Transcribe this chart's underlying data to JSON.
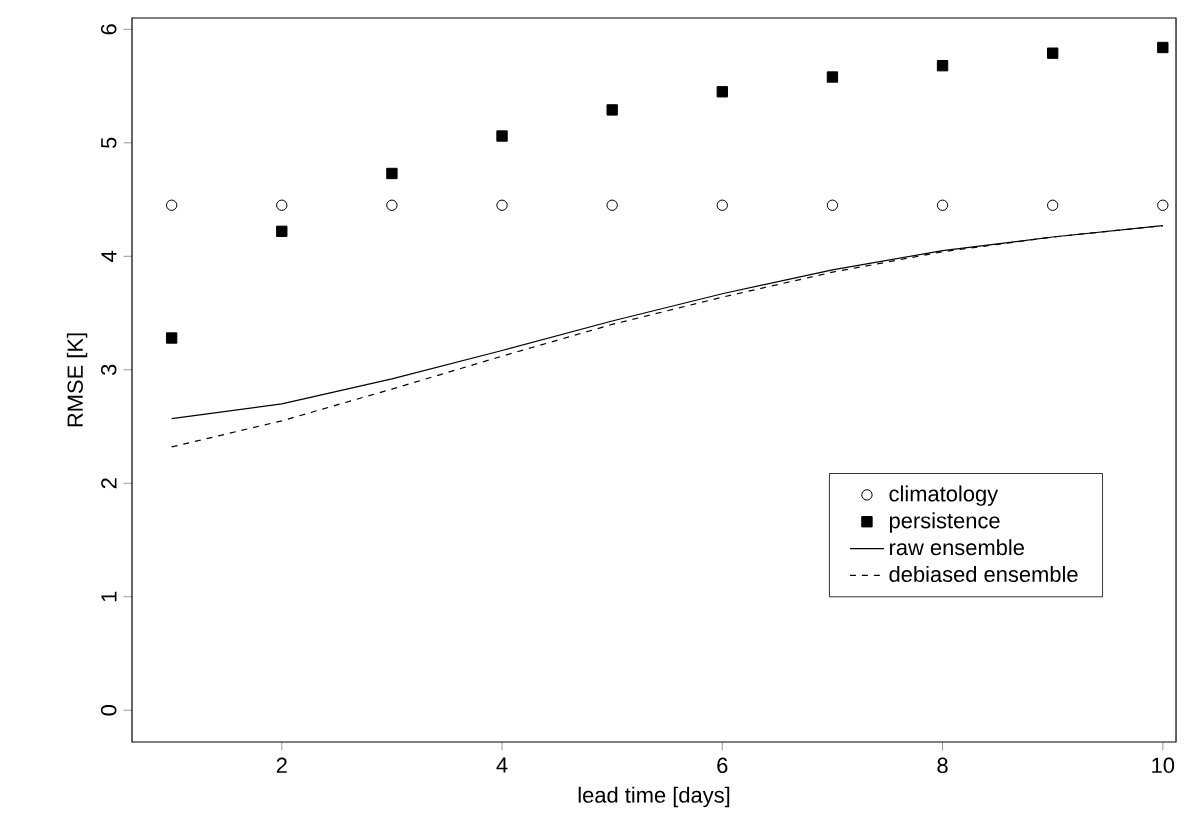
{
  "chart_data": {
    "type": "line",
    "xlabel": "lead time [days]",
    "ylabel": "RMSE [K]",
    "x": [
      1,
      2,
      3,
      4,
      5,
      6,
      7,
      8,
      9,
      10
    ],
    "xlim": [
      0.64,
      10.12
    ],
    "ylim": [
      -0.28,
      6.1
    ],
    "xticks": [
      2,
      4,
      6,
      8,
      10
    ],
    "yticks": [
      0,
      1,
      2,
      3,
      4,
      5,
      6
    ],
    "grid": false,
    "legend": "bottom right",
    "series": [
      {
        "name": "climatology",
        "type": "scatter",
        "marker": "circle",
        "color": "#000000",
        "values": [
          4.45,
          4.45,
          4.45,
          4.45,
          4.45,
          4.45,
          4.45,
          4.45,
          4.45,
          4.45
        ]
      },
      {
        "name": "persistence",
        "type": "scatter",
        "marker": "square",
        "color": "#000000",
        "values": [
          3.28,
          4.22,
          4.73,
          5.06,
          5.29,
          5.45,
          5.58,
          5.68,
          5.79,
          5.84
        ]
      },
      {
        "name": "raw ensemble",
        "type": "line",
        "line_style": "solid",
        "color": "#000000",
        "values": [
          2.57,
          2.7,
          2.92,
          3.17,
          3.43,
          3.67,
          3.88,
          4.05,
          4.17,
          4.27
        ]
      },
      {
        "name": "debiased ensemble",
        "type": "line",
        "line_style": "dashed",
        "color": "#000000",
        "values": [
          2.32,
          2.55,
          2.83,
          3.12,
          3.4,
          3.64,
          3.86,
          4.04,
          4.17,
          4.27
        ]
      }
    ]
  }
}
